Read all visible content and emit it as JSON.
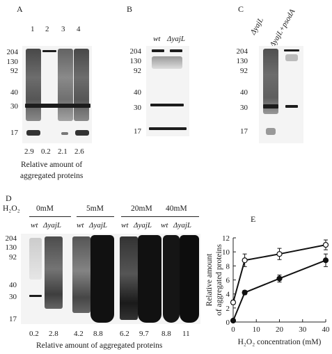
{
  "panels": {
    "A": {
      "letter": "A",
      "lanes": [
        "1",
        "2",
        "3",
        "4"
      ],
      "mw_markers": [
        "204",
        "130",
        "92",
        "40",
        "30",
        "17"
      ],
      "values": [
        "2.9",
        "0.2",
        "2.1",
        "2.6"
      ],
      "caption_line1": "Relative amount of",
      "caption_line2": "aggregated proteins"
    },
    "B": {
      "letter": "B",
      "lanes": [
        "wt",
        "ΔyajL"
      ],
      "mw_markers": [
        "204",
        "130",
        "92",
        "40",
        "30",
        "17"
      ]
    },
    "C": {
      "letter": "C",
      "lanes": [
        "ΔyajL",
        "ΔyajL+psodA"
      ],
      "mw_markers": [
        "204",
        "130",
        "92",
        "40",
        "30",
        "17"
      ]
    },
    "D": {
      "letter": "D",
      "h2o2_label": "H₂O₂",
      "concentrations": [
        "0mM",
        "5mM",
        "20mM",
        "40mM"
      ],
      "lane_labels": [
        "wt",
        "ΔyajL",
        "wt",
        "ΔyajL",
        "wt",
        "ΔyajL",
        "wt",
        "ΔyajL"
      ],
      "mw_markers": [
        "204",
        "130",
        "92",
        "40",
        "30",
        "17"
      ],
      "values": [
        "0.2",
        "2.8",
        "4.2",
        "8.8",
        "6.2",
        "9.7",
        "8.8",
        "11"
      ],
      "caption": "Relative amount of aggregated proteins"
    },
    "E": {
      "letter": "E"
    }
  },
  "chart_data": {
    "type": "line",
    "title": "",
    "xlabel": "H₂O₂ concentration (mM)",
    "ylabel": "Relative amount of aggregated proteins",
    "x": [
      0,
      5,
      20,
      40
    ],
    "xlim": [
      0,
      40
    ],
    "ylim": [
      0,
      12
    ],
    "xticks": [
      0,
      10,
      20,
      30,
      40
    ],
    "yticks": [
      0,
      2,
      4,
      6,
      8,
      10,
      12
    ],
    "grid": false,
    "series": [
      {
        "marker": "open-circle",
        "values": [
          2.8,
          8.8,
          9.7,
          11
        ],
        "errors": [
          0.3,
          0.9,
          0.8,
          0.7
        ]
      },
      {
        "marker": "filled-circle",
        "values": [
          0.2,
          4.2,
          6.2,
          8.8
        ],
        "errors": [
          0.1,
          0.3,
          0.5,
          0.9
        ]
      }
    ]
  }
}
